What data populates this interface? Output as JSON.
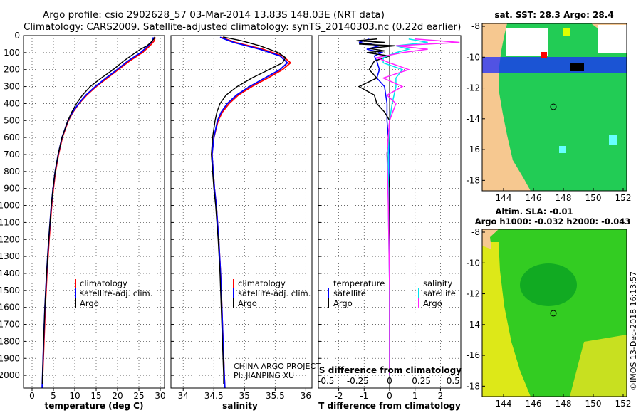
{
  "header": {
    "line1": "Argo profile: csio 2902628_57 03-Mar-2014 13.83S 148.03E (NRT data)",
    "line2": "Climatology: CARS2009. Satellite-adjusted climatology: synTS_20140303.nc (0.22d earlier)"
  },
  "colors": {
    "climatology": "#ff0000",
    "satellite": "#0000ff",
    "argo": "#000000",
    "salinity_satellite": "#00e5ee",
    "salinity_argo": "#ff22ff"
  },
  "chart_data": [
    {
      "type": "line",
      "panel": "temperature",
      "xlabel": "temperature (deg C)",
      "xlim": [
        -2,
        31
      ],
      "xticks": [
        0,
        5,
        10,
        15,
        20,
        25,
        30
      ],
      "ylim": [
        0,
        2075
      ],
      "yticks": [
        0,
        100,
        200,
        300,
        400,
        500,
        600,
        700,
        800,
        900,
        1000,
        1100,
        1200,
        1300,
        1400,
        1500,
        1600,
        1700,
        1800,
        1900,
        2000
      ],
      "legend": [
        "climatology",
        "satellite-adj. clim.",
        "Argo"
      ],
      "series": [
        {
          "name": "climatology",
          "depth": [
            10,
            30,
            60,
            100,
            150,
            200,
            250,
            300,
            350,
            400,
            450,
            500,
            600,
            700,
            800,
            900,
            1000,
            1200,
            1400,
            1600,
            1800,
            2000,
            2075
          ],
          "values": [
            28.8,
            28.6,
            27.6,
            25.8,
            22.8,
            20.2,
            17.6,
            15.0,
            12.8,
            11.0,
            9.6,
            8.5,
            7.1,
            6.2,
            5.5,
            5.0,
            4.6,
            4.0,
            3.5,
            3.1,
            2.8,
            2.5,
            2.4
          ]
        },
        {
          "name": "satellite-adj. clim.",
          "depth": [
            10,
            30,
            60,
            100,
            150,
            200,
            250,
            300,
            350,
            400,
            450,
            500,
            600,
            700,
            800,
            900,
            1000,
            1200,
            1400,
            1600,
            1800,
            2000,
            2075
          ],
          "values": [
            28.4,
            28.2,
            27.2,
            25.4,
            22.4,
            19.9,
            17.3,
            14.8,
            12.6,
            10.9,
            9.5,
            8.4,
            7.0,
            6.1,
            5.4,
            4.9,
            4.5,
            3.9,
            3.4,
            3.0,
            2.7,
            2.45,
            2.35
          ]
        },
        {
          "name": "Argo",
          "depth": [
            8,
            20,
            40,
            60,
            80,
            100,
            150,
            200,
            250,
            300,
            350,
            400,
            450,
            500,
            600,
            700,
            800,
            900,
            1000,
            1200,
            1400,
            1600,
            1800,
            2000,
            2050
          ],
          "values": [
            28.7,
            28.5,
            27.8,
            26.9,
            25.4,
            24.2,
            21.4,
            19.0,
            16.2,
            13.6,
            11.8,
            10.4,
            9.3,
            8.4,
            7.0,
            6.1,
            5.4,
            4.9,
            4.5,
            3.9,
            3.4,
            3.0,
            2.7,
            2.45,
            2.4
          ]
        }
      ]
    },
    {
      "type": "line",
      "panel": "salinity",
      "xlabel": "salinity",
      "xlim": [
        33.8,
        36.1
      ],
      "xticks": [
        34,
        34.5,
        35,
        35.5,
        36
      ],
      "ylim": [
        0,
        2075
      ],
      "legend": [
        "climatology",
        "satellite-adj. clim.",
        "Argo"
      ],
      "annotations": [
        "CHINA ARGO PROJECT",
        "PI: JIANPING XU"
      ],
      "series": [
        {
          "name": "climatology",
          "depth": [
            10,
            40,
            80,
            120,
            160,
            200,
            250,
            300,
            350,
            400,
            450,
            500,
            600,
            700,
            800,
            900,
            1000,
            1200,
            1400,
            1600,
            1800,
            2000,
            2075
          ],
          "values": [
            34.62,
            34.85,
            35.3,
            35.62,
            35.75,
            35.62,
            35.38,
            35.12,
            34.9,
            34.75,
            34.64,
            34.57,
            34.5,
            34.47,
            34.49,
            34.51,
            34.54,
            34.58,
            34.61,
            34.63,
            34.65,
            34.67,
            34.68
          ]
        },
        {
          "name": "satellite-adj. clim.",
          "depth": [
            10,
            40,
            80,
            120,
            160,
            200,
            250,
            300,
            350,
            400,
            450,
            500,
            600,
            700,
            800,
            900,
            1000,
            1200,
            1400,
            1600,
            1800,
            2000,
            2075
          ],
          "values": [
            34.6,
            34.82,
            35.25,
            35.58,
            35.7,
            35.58,
            35.33,
            35.08,
            34.87,
            34.72,
            34.62,
            34.56,
            34.5,
            34.47,
            34.49,
            34.51,
            34.54,
            34.58,
            34.61,
            34.63,
            34.65,
            34.67,
            34.68
          ]
        },
        {
          "name": "Argo",
          "depth": [
            8,
            30,
            60,
            100,
            130,
            160,
            200,
            250,
            300,
            350,
            400,
            450,
            500,
            600,
            700,
            800,
            900,
            1000,
            1200,
            1400,
            1600,
            1800,
            2000,
            2050
          ],
          "values": [
            34.65,
            34.95,
            35.25,
            35.55,
            35.67,
            35.62,
            35.4,
            35.12,
            34.88,
            34.7,
            34.6,
            34.55,
            34.52,
            34.48,
            34.46,
            34.48,
            34.5,
            34.53,
            34.57,
            34.6,
            34.62,
            34.64,
            34.66,
            34.66
          ]
        }
      ]
    },
    {
      "type": "line",
      "panel": "difference",
      "xlabel": "T difference from climatology",
      "xlabel2": "S difference from climatology",
      "xlim": [
        -2.8,
        2.8
      ],
      "xticks": [
        -2,
        -1,
        0,
        1,
        2
      ],
      "xticks2": [
        "-0.5",
        "-0.25",
        "0",
        "0.25",
        "0.5"
      ],
      "ylim": [
        0,
        2075
      ],
      "legend": [
        "temperature",
        "satellite",
        "Argo",
        "salinity",
        "satellite",
        "Argo"
      ],
      "series": [
        {
          "name": "T satellite",
          "depth": [
            20,
            40,
            60,
            80,
            100,
            120,
            150,
            200,
            250,
            300,
            400,
            500,
            700,
            1000,
            1500,
            2000
          ],
          "values": [
            -0.8,
            -1.2,
            -0.4,
            -0.9,
            -0.3,
            -0.6,
            -0.5,
            -0.4,
            -0.5,
            -0.2,
            -0.1,
            -0.1,
            0.0,
            0.0,
            0.0,
            0.0
          ]
        },
        {
          "name": "T Argo",
          "depth": [
            20,
            30,
            40,
            50,
            60,
            75,
            90,
            100,
            120,
            150,
            200,
            250,
            300,
            350,
            400,
            450,
            500,
            700,
            900,
            1200,
            1500,
            2000
          ],
          "values": [
            -0.5,
            -1.3,
            -0.2,
            -1.2,
            0.2,
            -0.8,
            -0.2,
            -0.9,
            0.0,
            -0.6,
            -0.8,
            -0.5,
            -1.2,
            -0.6,
            -0.5,
            -0.2,
            0.0,
            -0.1,
            0.0,
            0.0,
            0.0,
            0.0
          ]
        },
        {
          "name": "S satellite",
          "depth": [
            20,
            40,
            60,
            80,
            100,
            130,
            160,
            200,
            250,
            300,
            400,
            500,
            700,
            1000,
            1500,
            2000
          ],
          "values": [
            0.15,
            0.3,
            0.05,
            0.15,
            0.05,
            -0.05,
            -0.05,
            0.1,
            0.05,
            0.05,
            0.02,
            0.0,
            -0.01,
            -0.01,
            0.0,
            0.0
          ]
        },
        {
          "name": "S Argo",
          "depth": [
            20,
            40,
            60,
            80,
            100,
            130,
            160,
            200,
            250,
            300,
            350,
            400,
            500,
            700,
            1000,
            1500,
            2000
          ],
          "values": [
            0.2,
            0.55,
            0.05,
            0.3,
            0.1,
            -0.1,
            0.0,
            0.15,
            -0.05,
            0.1,
            -0.02,
            0.05,
            0.0,
            -0.02,
            -0.01,
            0.0,
            0.0
          ]
        }
      ]
    }
  ],
  "maps": {
    "sst": {
      "title": "sat. SST: 28.3 Argo: 28.4",
      "yticks": [
        "-8",
        "-10",
        "-12",
        "-14",
        "-16",
        "-18"
      ],
      "xticks": [
        "144",
        "146",
        "148",
        "150",
        "152"
      ]
    },
    "sla": {
      "title1": "Altim. SLA: -0.01",
      "title2": "Argo h1000: -0.032 h2000: -0.043",
      "yticks": [
        "-8",
        "-10",
        "-12",
        "-14",
        "-16",
        "-18"
      ],
      "xticks": [
        "144",
        "146",
        "148",
        "150",
        "152"
      ]
    }
  },
  "credit": "©IMOS 13-Dec-2018 16:13:57"
}
